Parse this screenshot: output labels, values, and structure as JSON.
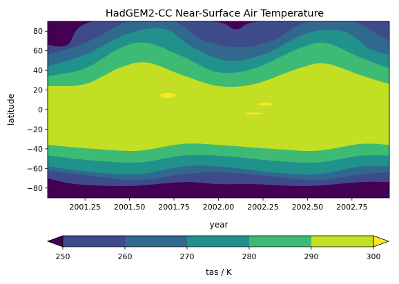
{
  "chart_data": {
    "type": "contourf",
    "title": "HadGEM2-CC Near-Surface Air Temperature",
    "xlabel": "year",
    "ylabel": "latitude",
    "xlim": [
      2001.04,
      2002.96
    ],
    "ylim": [
      -90,
      90
    ],
    "x_ticks": [
      2001.25,
      2001.5,
      2001.75,
      2002.0,
      2002.25,
      2002.5,
      2002.75
    ],
    "x_tick_labels": [
      "2001.25",
      "2001.50",
      "2001.75",
      "2002.00",
      "2002.25",
      "2002.50",
      "2002.75"
    ],
    "y_ticks": [
      -80,
      -60,
      -40,
      -20,
      0,
      20,
      40,
      60,
      80
    ],
    "y_tick_labels": [
      "−80",
      "−60",
      "−40",
      "−20",
      "0",
      "20",
      "40",
      "60",
      "80"
    ],
    "levels": [
      250,
      260,
      270,
      280,
      290,
      300
    ],
    "level_colors": [
      "#440154",
      "#3e4a89",
      "#31688e",
      "#21918c",
      "#3dbb74",
      "#c2df23",
      "#fde725"
    ],
    "colorbar": {
      "label": "tas / K",
      "extend": "both",
      "tick_labels": [
        "250",
        "260",
        "270",
        "280",
        "290",
        "300"
      ]
    },
    "boundaries_north": [
      {
        "level": 290,
        "lat_at_x": [
          [
            2001.04,
            24
          ],
          [
            2001.25,
            26
          ],
          [
            2001.45,
            43
          ],
          [
            2001.6,
            48
          ],
          [
            2001.8,
            35
          ],
          [
            2002.0,
            24
          ],
          [
            2002.2,
            26
          ],
          [
            2002.45,
            42
          ],
          [
            2002.6,
            47
          ],
          [
            2002.8,
            35
          ],
          [
            2002.96,
            26
          ]
        ]
      },
      {
        "level": 280,
        "lat_at_x": [
          [
            2001.04,
            34
          ],
          [
            2001.25,
            42
          ],
          [
            2001.45,
            63
          ],
          [
            2001.6,
            68
          ],
          [
            2001.8,
            54
          ],
          [
            2002.0,
            38
          ],
          [
            2002.2,
            42
          ],
          [
            2002.45,
            62
          ],
          [
            2002.6,
            68
          ],
          [
            2002.8,
            53
          ],
          [
            2002.96,
            42
          ]
        ]
      },
      {
        "level": 270,
        "lat_at_x": [
          [
            2001.04,
            44
          ],
          [
            2001.25,
            56
          ],
          [
            2001.5,
            78
          ],
          [
            2001.7,
            82
          ],
          [
            2001.85,
            64
          ],
          [
            2002.05,
            50
          ],
          [
            2002.25,
            56
          ],
          [
            2002.5,
            78
          ],
          [
            2002.7,
            80
          ],
          [
            2002.85,
            62
          ],
          [
            2002.96,
            56
          ]
        ]
      },
      {
        "level": 260,
        "lat_at_x": [
          [
            2001.04,
            56
          ],
          [
            2001.25,
            68
          ],
          [
            2001.5,
            90
          ],
          [
            2001.75,
            90
          ],
          [
            2001.9,
            72
          ],
          [
            2002.1,
            64
          ],
          [
            2002.3,
            70
          ],
          [
            2002.5,
            90
          ],
          [
            2002.75,
            90
          ],
          [
            2002.9,
            76
          ],
          [
            2002.96,
            70
          ]
        ]
      },
      {
        "level": 250,
        "lat_at_x": [
          [
            2001.04,
            66
          ],
          [
            2001.15,
            66
          ],
          [
            2001.3,
            90
          ],
          [
            2001.95,
            90
          ],
          [
            2002.1,
            82
          ],
          [
            2002.25,
            90
          ],
          [
            2002.96,
            90
          ]
        ]
      }
    ],
    "boundaries_south": [
      {
        "level": 290,
        "lat_at_x": [
          [
            2001.04,
            -36
          ],
          [
            2001.3,
            -40
          ],
          [
            2001.55,
            -42
          ],
          [
            2001.8,
            -35
          ],
          [
            2002.0,
            -36
          ],
          [
            2002.3,
            -40
          ],
          [
            2002.55,
            -42
          ],
          [
            2002.8,
            -35
          ],
          [
            2002.96,
            -36
          ]
        ]
      },
      {
        "level": 280,
        "lat_at_x": [
          [
            2001.04,
            -47
          ],
          [
            2001.3,
            -52
          ],
          [
            2001.55,
            -54
          ],
          [
            2001.8,
            -47
          ],
          [
            2002.0,
            -47
          ],
          [
            2002.3,
            -52
          ],
          [
            2002.55,
            -54
          ],
          [
            2002.8,
            -47
          ],
          [
            2002.96,
            -47
          ]
        ]
      },
      {
        "level": 270,
        "lat_at_x": [
          [
            2001.04,
            -58
          ],
          [
            2001.3,
            -64
          ],
          [
            2001.55,
            -66
          ],
          [
            2001.8,
            -58
          ],
          [
            2002.0,
            -58
          ],
          [
            2002.3,
            -64
          ],
          [
            2002.55,
            -66
          ],
          [
            2002.8,
            -58
          ],
          [
            2002.96,
            -58
          ]
        ]
      },
      {
        "level": 260,
        "lat_at_x": [
          [
            2001.04,
            -62
          ],
          [
            2001.3,
            -68
          ],
          [
            2001.55,
            -72
          ],
          [
            2001.8,
            -66
          ],
          [
            2002.0,
            -64
          ],
          [
            2002.3,
            -68
          ],
          [
            2002.55,
            -72
          ],
          [
            2002.8,
            -66
          ],
          [
            2002.96,
            -64
          ]
        ]
      },
      {
        "level": 250,
        "lat_at_x": [
          [
            2001.04,
            -70
          ],
          [
            2001.2,
            -76
          ],
          [
            2001.5,
            -78
          ],
          [
            2001.8,
            -74
          ],
          [
            2002.0,
            -76
          ],
          [
            2002.2,
            -76
          ],
          [
            2002.5,
            -78
          ],
          [
            2002.8,
            -74
          ],
          [
            2002.96,
            -74
          ]
        ]
      }
    ],
    "warm_patches": [
      {
        "x": [
          2001.67,
          2001.76
        ],
        "lat": [
          12,
          17
        ]
      },
      {
        "x": [
          2002.22,
          2002.3
        ],
        "lat": [
          4,
          7
        ]
      },
      {
        "x": [
          2002.15,
          2002.25
        ],
        "lat": [
          -5,
          -3
        ]
      }
    ]
  }
}
